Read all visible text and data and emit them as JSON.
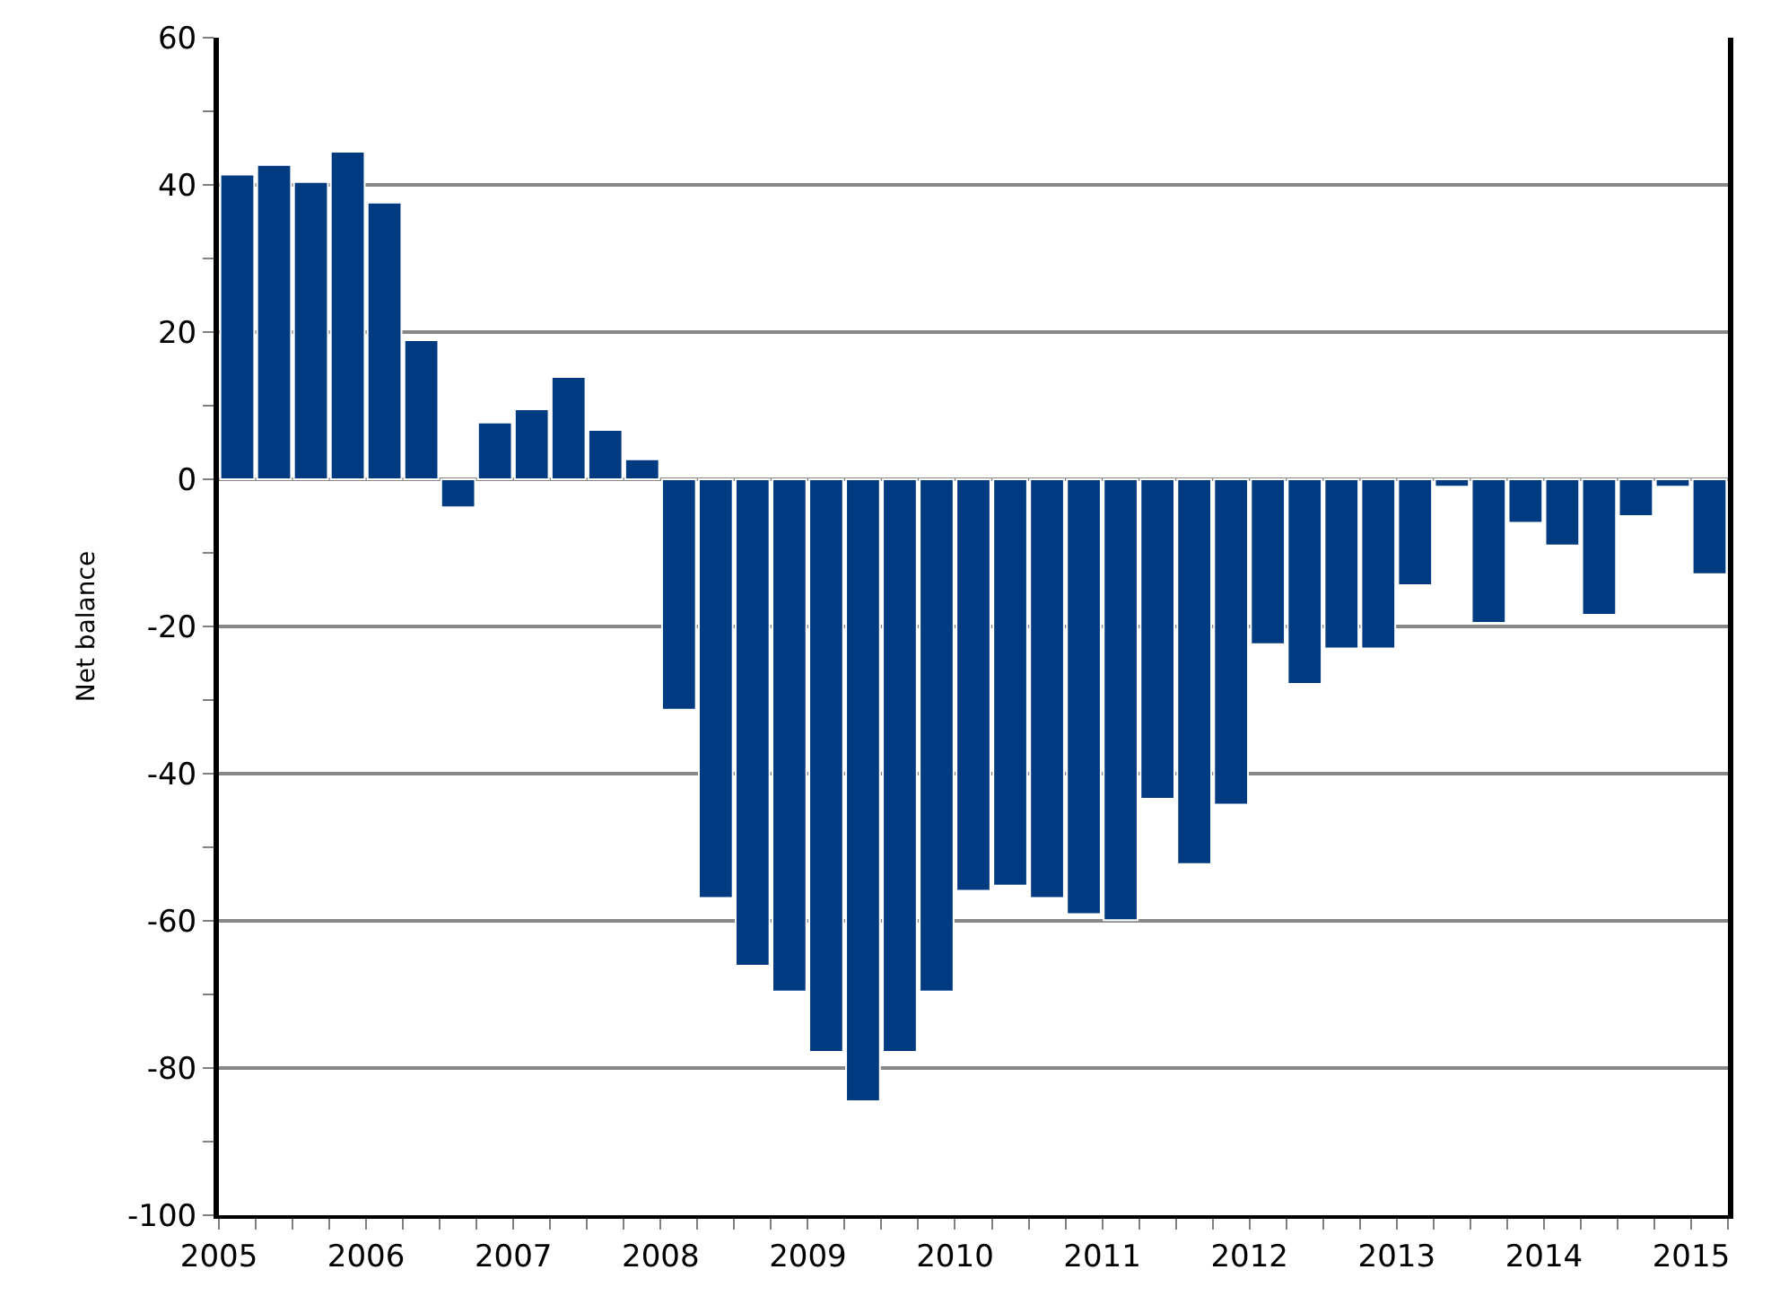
{
  "chart_data": {
    "type": "bar",
    "ylabel": "Net balance",
    "x": [
      2005.125,
      2005.375,
      2005.625,
      2005.875,
      2006.125,
      2006.375,
      2006.625,
      2006.875,
      2007.125,
      2007.375,
      2007.625,
      2007.875,
      2008.125,
      2008.375,
      2008.625,
      2008.875,
      2009.125,
      2009.375,
      2009.625,
      2009.875,
      2010.125,
      2010.375,
      2010.625,
      2010.875,
      2011.125,
      2011.375,
      2011.625,
      2011.875,
      2012.125,
      2012.375,
      2012.625,
      2012.875,
      2013.125,
      2013.375,
      2013.625,
      2013.875,
      2014.125,
      2014.375,
      2014.625,
      2014.875,
      2015.125
    ],
    "values": [
      41.4,
      42.7,
      40.4,
      44.5,
      37.6,
      18.9,
      -3.8,
      7.7,
      9.5,
      13.9,
      6.7,
      2.7,
      -31.3,
      -56.9,
      -66.1,
      -69.6,
      -77.8,
      -84.5,
      -77.8,
      -69.6,
      -55.9,
      -55.2,
      -56.9,
      -59.1,
      -59.9,
      -43.4,
      -52.3,
      -44.2,
      -22.4,
      -27.8,
      -23.0,
      -23.0,
      -14.4,
      -1.0,
      -19.5,
      -5.9,
      -9.0,
      -18.4,
      -5.0,
      -1.0,
      -12.9
    ],
    "color": "#003a80",
    "xlim": [
      2005,
      2015.25
    ],
    "xticks": [
      2005,
      2006,
      2007,
      2008,
      2009,
      2010,
      2011,
      2012,
      2013,
      2014,
      2015
    ],
    "ylim": [
      -100,
      60
    ],
    "yticks": [
      -100,
      -80,
      -60,
      -40,
      -20,
      0,
      20,
      40,
      60
    ],
    "grid": "y"
  }
}
